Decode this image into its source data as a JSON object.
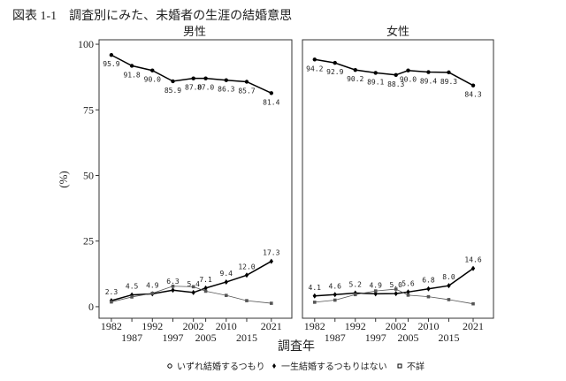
{
  "title": "図表 1-1　調査別にみた、未婚者の生涯の結婚意思",
  "x_label": "調査年",
  "y_label": "(%)",
  "chart_data": [
    {
      "type": "line",
      "title": "男性",
      "x": [
        1982,
        1987,
        1992,
        1997,
        2002,
        2005,
        2010,
        2015,
        2021
      ],
      "xticks": [
        1982,
        1987,
        1992,
        1997,
        2002,
        2005,
        2010,
        2015,
        2021
      ],
      "xlim": [
        1979,
        2026
      ],
      "ylim": [
        -4.4,
        101.7
      ],
      "yticks": [
        0,
        25,
        50,
        75,
        100
      ],
      "series": [
        {
          "name": "いずれ結婚するつもり",
          "color": "#000000",
          "values": [
            95.9,
            91.8,
            90.0,
            85.9,
            87.0,
            87.0,
            86.3,
            85.7,
            81.4
          ],
          "value_labels": [
            "95.9",
            "91.8",
            "90.0",
            "85.9",
            "87.0",
            "87.0",
            "86.3",
            "85.7",
            "81.4"
          ]
        },
        {
          "name": "一生結婚するつもりはない",
          "color": "#000000",
          "values": [
            2.3,
            4.5,
            4.9,
            6.3,
            5.4,
            7.1,
            9.4,
            12.0,
            17.3
          ],
          "value_labels": [
            "2.3",
            "4.5",
            "4.9",
            "6.3",
            "5.4",
            "7.1",
            "9.4",
            "12.0",
            "17.3"
          ]
        },
        {
          "name": "不詳",
          "color": "#555555",
          "values": [
            1.8,
            3.7,
            5.1,
            7.8,
            7.6,
            5.9,
            4.3,
            2.3,
            1.3
          ]
        }
      ]
    },
    {
      "type": "line",
      "title": "女性",
      "x": [
        1982,
        1987,
        1992,
        1997,
        2002,
        2005,
        2010,
        2015,
        2021
      ],
      "xticks": [
        1982,
        1987,
        1992,
        1997,
        2002,
        2005,
        2010,
        2015,
        2021
      ],
      "xlim": [
        1979,
        2026
      ],
      "ylim": [
        -4.4,
        101.7
      ],
      "series": [
        {
          "name": "いずれ結婚するつもり",
          "color": "#000000",
          "values": [
            94.2,
            92.9,
            90.2,
            89.1,
            88.3,
            90.0,
            89.4,
            89.3,
            84.3
          ],
          "value_labels": [
            "94.2",
            "92.9",
            "90.2",
            "89.1",
            "88.3",
            "90.0",
            "89.4",
            "89.3",
            "84.3"
          ]
        },
        {
          "name": "一生結婚するつもりはない",
          "color": "#000000",
          "values": [
            4.1,
            4.6,
            5.2,
            4.9,
            5.0,
            5.6,
            6.8,
            8.0,
            14.6
          ],
          "value_labels": [
            "4.1",
            "4.6",
            "5.2",
            "4.9",
            "5.0",
            "5.6",
            "6.8",
            "8.0",
            "14.6"
          ]
        },
        {
          "name": "不詳",
          "color": "#555555",
          "values": [
            1.7,
            2.5,
            4.6,
            6.0,
            6.7,
            4.4,
            3.8,
            2.7,
            1.1
          ]
        }
      ]
    }
  ]
}
